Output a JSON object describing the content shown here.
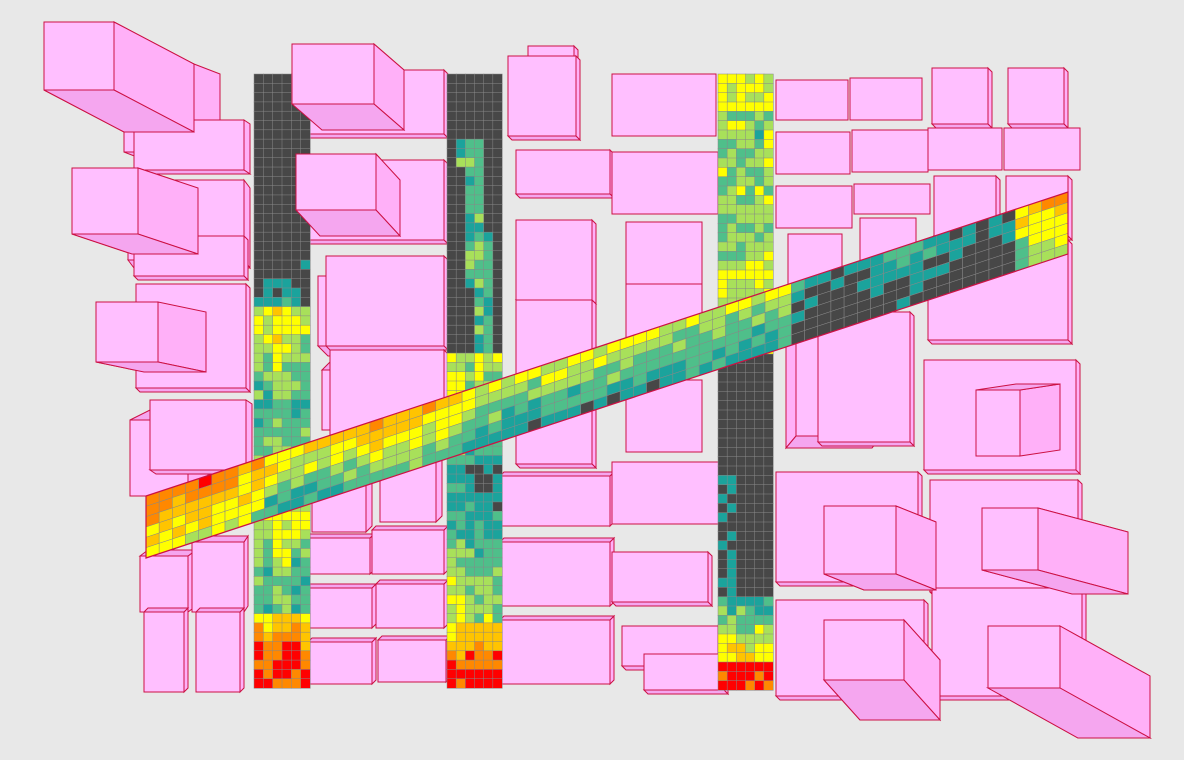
{
  "colors": {
    "background": "#e8e8e8",
    "building_fill": "#ffbfff",
    "building_edge": "#cc1144",
    "grid_line": "#888888",
    "scale": [
      "#474747",
      "#1ba39c",
      "#4fbf8a",
      "#a8e05a",
      "#ffff00",
      "#ffc400",
      "#ff8800",
      "#ff0000"
    ]
  }
}
